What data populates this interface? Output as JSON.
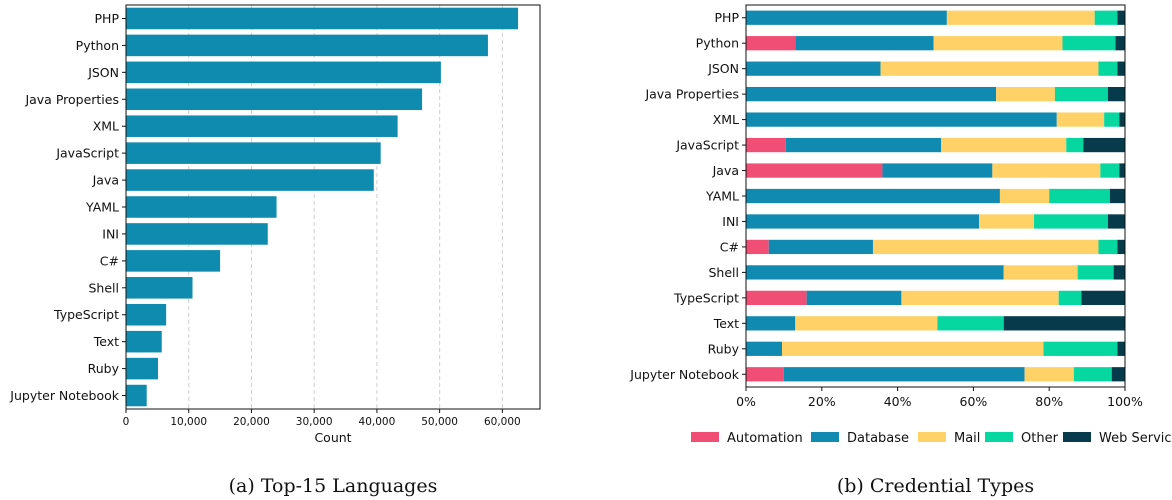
{
  "chart_data": [
    {
      "type": "bar",
      "orientation": "horizontal",
      "caption": "(a) Top-15 Languages",
      "xlabel": "Count",
      "ylabel": "",
      "xlim": [
        0,
        66000
      ],
      "xticks": [
        0,
        10000,
        20000,
        30000,
        40000,
        50000,
        60000
      ],
      "xtick_labels": [
        "0",
        "10,000",
        "20,000",
        "30,000",
        "40,000",
        "50,000",
        "60,000"
      ],
      "grid": "vertical dashed",
      "bar_color": "#0f8bb0",
      "categories": [
        "PHP",
        "Python",
        "JSON",
        "Java Properties",
        "XML",
        "JavaScript",
        "Java",
        "YAML",
        "INI",
        "C#",
        "Shell",
        "TypeScript",
        "Text",
        "Ruby",
        "Jupyter Notebook"
      ],
      "values": [
        62500,
        57700,
        50200,
        47200,
        43300,
        40600,
        39500,
        24000,
        22600,
        15000,
        10600,
        6400,
        5700,
        5100,
        3300
      ]
    },
    {
      "type": "bar",
      "orientation": "horizontal",
      "stacked": true,
      "caption": "(b) Credential Types",
      "xlabel": "",
      "ylabel": "",
      "xlim": [
        0,
        100
      ],
      "xtick_labels": [
        "0%",
        "20%",
        "40%",
        "60%",
        "80%",
        "100%"
      ],
      "legend_position": "bottom",
      "categories": [
        "PHP",
        "Python",
        "JSON",
        "Java Properties",
        "XML",
        "JavaScript",
        "Java",
        "YAML",
        "INI",
        "C#",
        "Shell",
        "TypeScript",
        "Text",
        "Ruby",
        "Jupyter Notebook"
      ],
      "series": [
        {
          "name": "Automation",
          "color": "#f04e74",
          "values": [
            0,
            13,
            0,
            0,
            0,
            10.5,
            36,
            0,
            0,
            6,
            0,
            16,
            0,
            0,
            10
          ]
        },
        {
          "name": "Database",
          "color": "#118ab2",
          "values": [
            53,
            36.5,
            35.5,
            66,
            82,
            41,
            29,
            67,
            61.5,
            27.5,
            68,
            25,
            13,
            9.5,
            63.5
          ]
        },
        {
          "name": "Mail",
          "color": "#ffd166",
          "values": [
            39,
            34,
            57.5,
            15.5,
            12.5,
            33,
            28.5,
            13,
            14.5,
            59.5,
            19.5,
            41.5,
            37.5,
            69,
            13
          ]
        },
        {
          "name": "Other",
          "color": "#06d6a0",
          "values": [
            6,
            14,
            5,
            14,
            4,
            4.5,
            5,
            16,
            19.5,
            5,
            9.5,
            6,
            17.5,
            19.5,
            10
          ]
        },
        {
          "name": "Web Servic",
          "color": "#073b4c",
          "values": [
            2,
            2.5,
            2,
            4.5,
            1.5,
            11,
            1.5,
            4,
            4.5,
            2,
            3,
            11.5,
            32,
            2,
            3.5
          ]
        }
      ]
    }
  ]
}
